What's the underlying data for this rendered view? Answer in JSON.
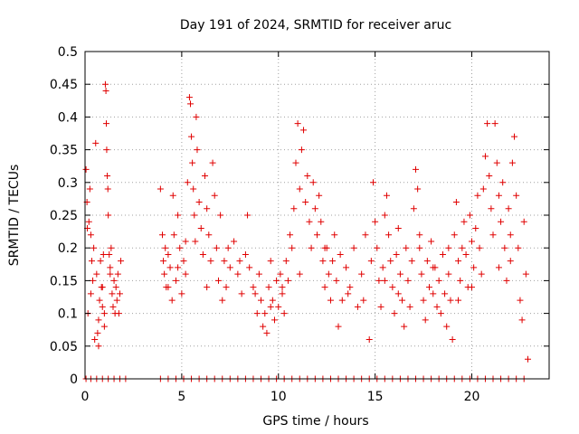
{
  "chart_data": {
    "type": "scatter",
    "title": "Day 191 of 2024, SRMTID for receiver aruc",
    "xlabel": "GPS time / hours",
    "ylabel": "SRMTID / TECUs",
    "xlim": [
      0,
      24
    ],
    "ylim": [
      0,
      0.5
    ],
    "xticks": [
      0,
      5,
      10,
      15,
      20
    ],
    "xtick_labels": [
      "0",
      "5",
      "10",
      "15",
      "20"
    ],
    "yticks": [
      0,
      0.05,
      0.1,
      0.15,
      0.2,
      0.25,
      0.3,
      0.35,
      0.4,
      0.45,
      0.5
    ],
    "ytick_labels": [
      "0",
      "0.05",
      "0.1",
      "0.15",
      "0.2",
      "0.25",
      "0.3",
      "0.35",
      "0.4",
      "0.45",
      "0.5"
    ],
    "grid": true,
    "marker": "plus",
    "color": "#e00000",
    "series": [
      {
        "name": "SRMTID",
        "points": [
          [
            0.05,
            0.32
          ],
          [
            0.1,
            0.27
          ],
          [
            0.12,
            0.23
          ],
          [
            0.15,
            0.1
          ],
          [
            0.2,
            0.24
          ],
          [
            0.25,
            0.29
          ],
          [
            0.3,
            0.22
          ],
          [
            0.35,
            0.18
          ],
          [
            0.4,
            0.15
          ],
          [
            0.45,
            0.2
          ],
          [
            0.5,
            0.06
          ],
          [
            0.55,
            0.36
          ],
          [
            0.6,
            0.16
          ],
          [
            0.65,
            0.07
          ],
          [
            0.7,
            0.05
          ],
          [
            0.75,
            0.12
          ],
          [
            0.8,
            0.18
          ],
          [
            0.85,
            0.14
          ],
          [
            0.9,
            0.11
          ],
          [
            0.95,
            0.19
          ],
          [
            1.0,
            0.08
          ],
          [
            1.05,
            0.45
          ],
          [
            1.08,
            0.44
          ],
          [
            1.1,
            0.39
          ],
          [
            1.12,
            0.35
          ],
          [
            1.15,
            0.31
          ],
          [
            1.18,
            0.29
          ],
          [
            1.2,
            0.25
          ],
          [
            1.25,
            0.19
          ],
          [
            1.3,
            0.16
          ],
          [
            1.35,
            0.2
          ],
          [
            1.4,
            0.13
          ],
          [
            1.45,
            0.11
          ],
          [
            1.5,
            0.15
          ],
          [
            1.55,
            0.1
          ],
          [
            1.6,
            0.14
          ],
          [
            1.65,
            0.12
          ],
          [
            1.7,
            0.16
          ],
          [
            1.75,
            0.1
          ],
          [
            1.8,
            0.13
          ],
          [
            1.85,
            0.18
          ],
          [
            0.3,
            0.13
          ],
          [
            0.7,
            0.09
          ],
          [
            1.0,
            0.1
          ],
          [
            1.3,
            0.17
          ],
          [
            0.9,
            0.14
          ],
          [
            3.9,
            0.29
          ],
          [
            4.0,
            0.22
          ],
          [
            4.05,
            0.18
          ],
          [
            4.1,
            0.16
          ],
          [
            4.15,
            0.2
          ],
          [
            4.2,
            0.14
          ],
          [
            4.3,
            0.19
          ],
          [
            4.4,
            0.17
          ],
          [
            4.5,
            0.12
          ],
          [
            4.55,
            0.28
          ],
          [
            4.6,
            0.22
          ],
          [
            4.7,
            0.15
          ],
          [
            4.8,
            0.25
          ],
          [
            4.9,
            0.2
          ],
          [
            5.0,
            0.13
          ],
          [
            5.1,
            0.18
          ],
          [
            5.2,
            0.16
          ],
          [
            5.3,
            0.3
          ],
          [
            5.4,
            0.43
          ],
          [
            5.45,
            0.42
          ],
          [
            5.5,
            0.37
          ],
          [
            5.55,
            0.33
          ],
          [
            5.6,
            0.29
          ],
          [
            5.65,
            0.25
          ],
          [
            5.7,
            0.21
          ],
          [
            5.75,
            0.4
          ],
          [
            5.8,
            0.35
          ],
          [
            5.9,
            0.27
          ],
          [
            6.0,
            0.23
          ],
          [
            6.1,
            0.19
          ],
          [
            6.2,
            0.31
          ],
          [
            6.3,
            0.26
          ],
          [
            6.4,
            0.22
          ],
          [
            6.5,
            0.18
          ],
          [
            6.6,
            0.33
          ],
          [
            6.7,
            0.28
          ],
          [
            6.8,
            0.2
          ],
          [
            6.9,
            0.15
          ],
          [
            7.0,
            0.25
          ],
          [
            7.1,
            0.12
          ],
          [
            7.2,
            0.18
          ],
          [
            7.3,
            0.14
          ],
          [
            7.5,
            0.17
          ],
          [
            7.7,
            0.21
          ],
          [
            7.9,
            0.16
          ],
          [
            8.1,
            0.13
          ],
          [
            8.3,
            0.19
          ],
          [
            8.4,
            0.25
          ],
          [
            8.5,
            0.17
          ],
          [
            8.7,
            0.14
          ],
          [
            8.9,
            0.1
          ],
          [
            9.0,
            0.16
          ],
          [
            9.1,
            0.12
          ],
          [
            9.2,
            0.08
          ],
          [
            9.3,
            0.1
          ],
          [
            9.4,
            0.07
          ],
          [
            9.5,
            0.14
          ],
          [
            9.6,
            0.18
          ],
          [
            9.7,
            0.12
          ],
          [
            9.8,
            0.09
          ],
          [
            9.9,
            0.15
          ],
          [
            10.0,
            0.11
          ],
          [
            10.1,
            0.16
          ],
          [
            10.2,
            0.13
          ],
          [
            10.3,
            0.1
          ],
          [
            10.4,
            0.18
          ],
          [
            10.5,
            0.15
          ],
          [
            10.6,
            0.22
          ],
          [
            10.7,
            0.2
          ],
          [
            10.8,
            0.26
          ],
          [
            10.9,
            0.33
          ],
          [
            11.0,
            0.39
          ],
          [
            11.1,
            0.29
          ],
          [
            11.2,
            0.35
          ],
          [
            11.3,
            0.38
          ],
          [
            11.4,
            0.27
          ],
          [
            11.5,
            0.31
          ],
          [
            11.6,
            0.24
          ],
          [
            11.7,
            0.2
          ],
          [
            11.8,
            0.3
          ],
          [
            11.9,
            0.26
          ],
          [
            12.0,
            0.22
          ],
          [
            12.1,
            0.28
          ],
          [
            12.2,
            0.24
          ],
          [
            12.3,
            0.18
          ],
          [
            12.4,
            0.14
          ],
          [
            12.5,
            0.2
          ],
          [
            12.6,
            0.16
          ],
          [
            12.7,
            0.12
          ],
          [
            12.8,
            0.18
          ],
          [
            12.9,
            0.22
          ],
          [
            13.0,
            0.15
          ],
          [
            13.1,
            0.08
          ],
          [
            13.2,
            0.19
          ],
          [
            13.3,
            0.12
          ],
          [
            13.5,
            0.17
          ],
          [
            13.7,
            0.14
          ],
          [
            13.9,
            0.2
          ],
          [
            14.1,
            0.11
          ],
          [
            14.3,
            0.16
          ],
          [
            14.5,
            0.22
          ],
          [
            14.7,
            0.06
          ],
          [
            14.8,
            0.18
          ],
          [
            14.9,
            0.3
          ],
          [
            15.0,
            0.24
          ],
          [
            15.1,
            0.2
          ],
          [
            15.2,
            0.15
          ],
          [
            15.3,
            0.11
          ],
          [
            15.4,
            0.17
          ],
          [
            15.5,
            0.25
          ],
          [
            15.6,
            0.28
          ],
          [
            15.7,
            0.22
          ],
          [
            15.8,
            0.18
          ],
          [
            15.9,
            0.14
          ],
          [
            16.0,
            0.1
          ],
          [
            16.1,
            0.19
          ],
          [
            16.2,
            0.23
          ],
          [
            16.3,
            0.16
          ],
          [
            16.4,
            0.12
          ],
          [
            16.5,
            0.08
          ],
          [
            16.6,
            0.2
          ],
          [
            16.7,
            0.15
          ],
          [
            16.8,
            0.11
          ],
          [
            16.9,
            0.18
          ],
          [
            17.0,
            0.26
          ],
          [
            17.1,
            0.32
          ],
          [
            17.2,
            0.29
          ],
          [
            17.3,
            0.22
          ],
          [
            17.4,
            0.16
          ],
          [
            17.5,
            0.12
          ],
          [
            17.6,
            0.09
          ],
          [
            17.7,
            0.18
          ],
          [
            17.8,
            0.14
          ],
          [
            17.9,
            0.21
          ],
          [
            18.0,
            0.13
          ],
          [
            18.1,
            0.17
          ],
          [
            18.2,
            0.11
          ],
          [
            18.3,
            0.15
          ],
          [
            18.4,
            0.1
          ],
          [
            18.5,
            0.19
          ],
          [
            18.6,
            0.13
          ],
          [
            18.7,
            0.08
          ],
          [
            18.8,
            0.16
          ],
          [
            18.9,
            0.12
          ],
          [
            19.0,
            0.06
          ],
          [
            19.1,
            0.22
          ],
          [
            19.2,
            0.27
          ],
          [
            19.3,
            0.18
          ],
          [
            19.4,
            0.15
          ],
          [
            19.5,
            0.2
          ],
          [
            19.6,
            0.24
          ],
          [
            19.7,
            0.19
          ],
          [
            19.8,
            0.14
          ],
          [
            19.9,
            0.25
          ],
          [
            20.0,
            0.21
          ],
          [
            20.1,
            0.17
          ],
          [
            20.2,
            0.23
          ],
          [
            20.3,
            0.28
          ],
          [
            20.4,
            0.2
          ],
          [
            20.5,
            0.16
          ],
          [
            20.6,
            0.29
          ],
          [
            20.7,
            0.34
          ],
          [
            20.8,
            0.39
          ],
          [
            20.9,
            0.31
          ],
          [
            21.0,
            0.26
          ],
          [
            21.1,
            0.22
          ],
          [
            21.2,
            0.39
          ],
          [
            21.3,
            0.33
          ],
          [
            21.4,
            0.28
          ],
          [
            21.5,
            0.24
          ],
          [
            21.6,
            0.3
          ],
          [
            21.7,
            0.2
          ],
          [
            21.8,
            0.15
          ],
          [
            21.9,
            0.26
          ],
          [
            22.0,
            0.22
          ],
          [
            22.1,
            0.33
          ],
          [
            22.2,
            0.37
          ],
          [
            22.3,
            0.28
          ],
          [
            22.4,
            0.2
          ],
          [
            22.5,
            0.12
          ],
          [
            22.6,
            0.09
          ],
          [
            22.7,
            0.24
          ],
          [
            22.8,
            0.16
          ],
          [
            22.9,
            0.03
          ],
          [
            4.3,
            0.14
          ],
          [
            4.8,
            0.17
          ],
          [
            5.2,
            0.21
          ],
          [
            6.3,
            0.14
          ],
          [
            7.4,
            0.2
          ],
          [
            8.0,
            0.18
          ],
          [
            8.8,
            0.13
          ],
          [
            9.6,
            0.11
          ],
          [
            10.2,
            0.14
          ],
          [
            11.1,
            0.16
          ],
          [
            12.4,
            0.2
          ],
          [
            13.6,
            0.13
          ],
          [
            14.4,
            0.12
          ],
          [
            15.5,
            0.15
          ],
          [
            16.2,
            0.13
          ],
          [
            17.3,
            0.2
          ],
          [
            18.0,
            0.17
          ],
          [
            18.8,
            0.2
          ],
          [
            19.3,
            0.12
          ],
          [
            20.0,
            0.14
          ],
          [
            21.4,
            0.17
          ],
          [
            22.0,
            0.18
          ],
          [
            0.05,
            0
          ],
          [
            0.3,
            0
          ],
          [
            0.6,
            0
          ],
          [
            0.9,
            0
          ],
          [
            1.2,
            0
          ],
          [
            1.5,
            0
          ],
          [
            1.8,
            0
          ],
          [
            2.1,
            0
          ],
          [
            3.9,
            0
          ],
          [
            4.3,
            0
          ],
          [
            4.7,
            0
          ],
          [
            5.1,
            0
          ],
          [
            5.5,
            0
          ],
          [
            5.9,
            0
          ],
          [
            6.3,
            0
          ],
          [
            6.7,
            0
          ],
          [
            7.1,
            0
          ],
          [
            7.5,
            0
          ],
          [
            7.9,
            0
          ],
          [
            8.3,
            0
          ],
          [
            8.7,
            0
          ],
          [
            9.1,
            0
          ],
          [
            9.5,
            0
          ],
          [
            9.9,
            0
          ],
          [
            10.3,
            0
          ],
          [
            10.7,
            0
          ],
          [
            11.1,
            0
          ],
          [
            11.5,
            0
          ],
          [
            11.9,
            0
          ],
          [
            12.3,
            0
          ],
          [
            12.7,
            0
          ],
          [
            13.1,
            0
          ],
          [
            13.5,
            0
          ],
          [
            13.9,
            0
          ],
          [
            14.3,
            0
          ],
          [
            14.7,
            0
          ],
          [
            15.1,
            0
          ],
          [
            15.5,
            0
          ],
          [
            15.9,
            0
          ],
          [
            16.3,
            0
          ],
          [
            16.7,
            0
          ],
          [
            17.1,
            0
          ],
          [
            17.5,
            0
          ],
          [
            17.9,
            0
          ],
          [
            18.3,
            0
          ],
          [
            18.7,
            0
          ],
          [
            19.1,
            0
          ],
          [
            19.5,
            0
          ],
          [
            19.9,
            0
          ],
          [
            20.3,
            0
          ],
          [
            20.7,
            0
          ],
          [
            21.1,
            0
          ],
          [
            21.5,
            0
          ],
          [
            21.9,
            0
          ],
          [
            22.3,
            0
          ],
          [
            22.7,
            0
          ]
        ]
      }
    ]
  }
}
